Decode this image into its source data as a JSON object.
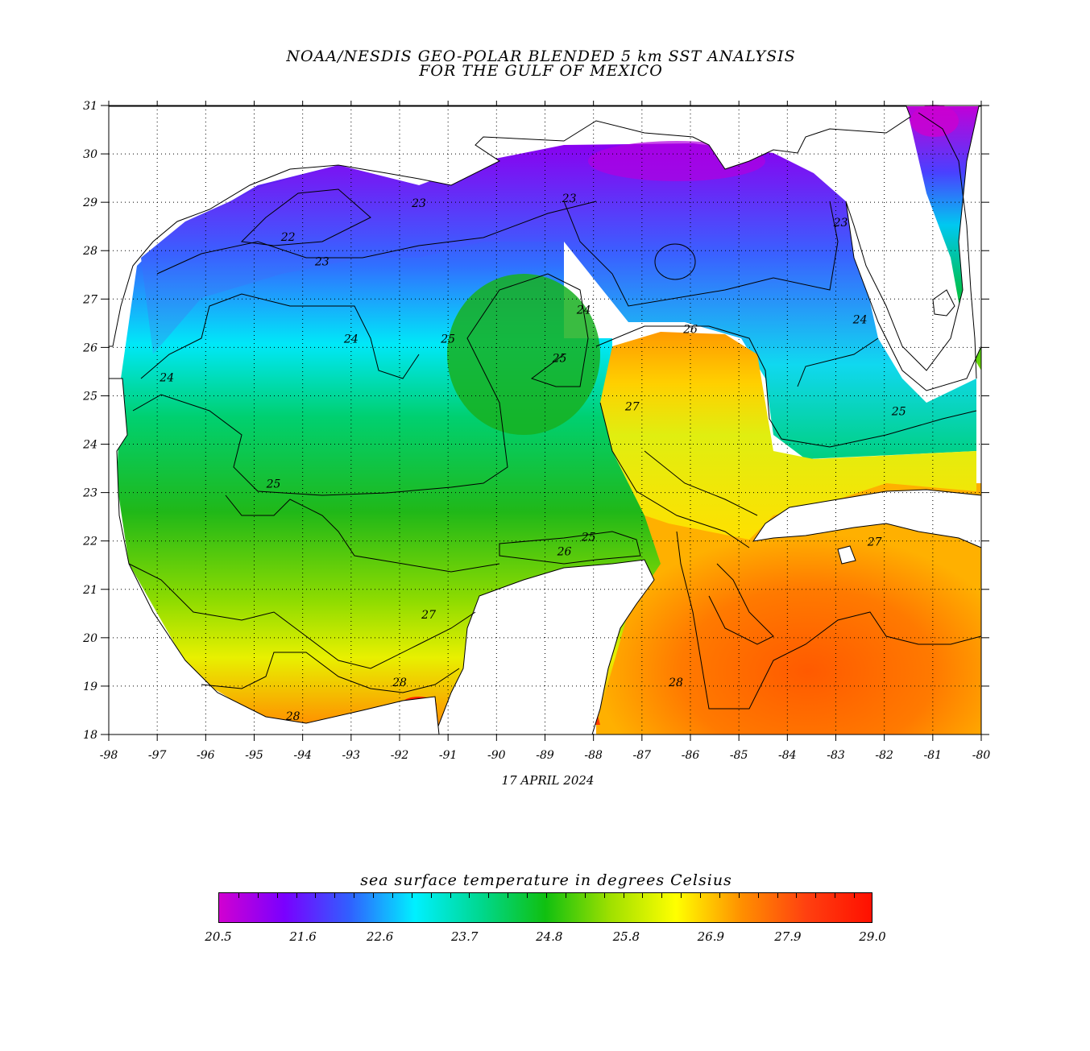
{
  "title_line1": "NOAA/NESDIS GEO-POLAR BLENDED 5 km SST ANALYSIS",
  "title_line2": "FOR THE GULF OF MEXICO",
  "date": "17 APRIL 2024",
  "map": {
    "lon_range": [
      -98,
      -80
    ],
    "lat_range": [
      18,
      31
    ],
    "lon_ticks": [
      "-98",
      "-97",
      "-96",
      "-95",
      "-94",
      "-93",
      "-92",
      "-91",
      "-90",
      "-89",
      "-88",
      "-87",
      "-86",
      "-85",
      "-84",
      "-83",
      "-82",
      "-81",
      "-80"
    ],
    "lat_ticks": [
      "18",
      "19",
      "20",
      "21",
      "22",
      "23",
      "24",
      "25",
      "26",
      "27",
      "28",
      "29",
      "30",
      "31"
    ],
    "grid": "dotted",
    "land_color": "#ffffff",
    "contour_labels": [
      {
        "text": "22",
        "lon": -94.3,
        "lat": 28.2
      },
      {
        "text": "23",
        "lon": -93.6,
        "lat": 27.7
      },
      {
        "text": "23",
        "lon": -91.6,
        "lat": 28.9
      },
      {
        "text": "23",
        "lon": -88.5,
        "lat": 29.0
      },
      {
        "text": "23",
        "lon": -82.9,
        "lat": 28.5
      },
      {
        "text": "24",
        "lon": -96.8,
        "lat": 25.3
      },
      {
        "text": "24",
        "lon": -93.0,
        "lat": 26.1
      },
      {
        "text": "24",
        "lon": -88.2,
        "lat": 26.7
      },
      {
        "text": "24",
        "lon": -82.5,
        "lat": 26.5
      },
      {
        "text": "25",
        "lon": -91.0,
        "lat": 26.1
      },
      {
        "text": "25",
        "lon": -88.7,
        "lat": 25.7
      },
      {
        "text": "25",
        "lon": -94.6,
        "lat": 23.1
      },
      {
        "text": "25",
        "lon": -88.1,
        "lat": 22.0
      },
      {
        "text": "25",
        "lon": -81.7,
        "lat": 24.6
      },
      {
        "text": "26",
        "lon": -86.0,
        "lat": 26.3
      },
      {
        "text": "26",
        "lon": -88.6,
        "lat": 21.7
      },
      {
        "text": "27",
        "lon": -87.2,
        "lat": 24.7
      },
      {
        "text": "27",
        "lon": -91.4,
        "lat": 20.4
      },
      {
        "text": "27",
        "lon": -82.2,
        "lat": 21.9
      },
      {
        "text": "28",
        "lon": -92.0,
        "lat": 19.0
      },
      {
        "text": "28",
        "lon": -94.2,
        "lat": 18.3
      },
      {
        "text": "28",
        "lon": -86.3,
        "lat": 19.0
      }
    ]
  },
  "legend": {
    "title": "sea surface temperature in degrees Celsius",
    "min": 20.5,
    "max": 29.0,
    "tick_labels": [
      "20.5",
      "21.6",
      "22.6",
      "23.7",
      "24.8",
      "25.8",
      "26.9",
      "27.9",
      "29.0"
    ],
    "colors": [
      "#d100d1",
      "#7a00ff",
      "#3060ff",
      "#00f0ff",
      "#00d890",
      "#10c010",
      "#a0e000",
      "#ffff00",
      "#ff9000",
      "#ff4010",
      "#ff1000"
    ]
  }
}
